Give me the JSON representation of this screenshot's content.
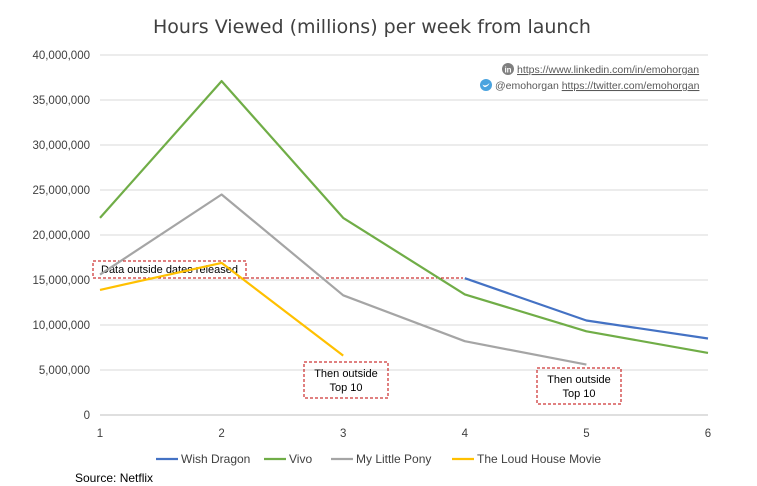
{
  "chart_data": {
    "type": "line",
    "title": "Hours Viewed (millions) per week from launch",
    "x": [
      1,
      2,
      3,
      4,
      5,
      6
    ],
    "ylim": [
      0,
      40000000
    ],
    "xlim": [
      1,
      6
    ],
    "y_ticks": [
      0,
      5000000,
      10000000,
      15000000,
      20000000,
      25000000,
      30000000,
      35000000,
      40000000
    ],
    "y_tick_labels": [
      "0",
      "5,000,000",
      "10,000,000",
      "15,000,000",
      "20,000,000",
      "25,000,000",
      "30,000,000",
      "35,000,000",
      "40,000,000"
    ],
    "x_tick_labels": [
      "1",
      "2",
      "3",
      "4",
      "5",
      "6"
    ],
    "grid": true,
    "legend_position": "bottom",
    "series": [
      {
        "name": "Wish Dragon",
        "color": "#4472c4",
        "values": [
          null,
          null,
          null,
          15200000,
          10500000,
          8500000
        ]
      },
      {
        "name": "Vivo",
        "color": "#70ad47",
        "values": [
          21900000,
          37100000,
          21900000,
          13400000,
          9300000,
          6900000
        ]
      },
      {
        "name": "My Little Pony",
        "color": "#a5a5a5",
        "values": [
          15600000,
          24500000,
          13300000,
          8200000,
          5600000,
          null
        ]
      },
      {
        "name": "The Loud House Movie",
        "color": "#ffc000",
        "values": [
          13900000,
          16900000,
          6600000,
          null,
          null,
          null
        ]
      }
    ],
    "annotations": {
      "data_outside": "Data outside dates released",
      "then_outside_line1": "Then outside",
      "then_outside_line2": "Top 10"
    },
    "credits": {
      "linkedin": "https://www.linkedin.com/in/emohorgan",
      "twitter_handle": "@emohorgan",
      "twitter_url": "https://twitter.com/emohorgan"
    },
    "source": "Source:  Netflix"
  }
}
